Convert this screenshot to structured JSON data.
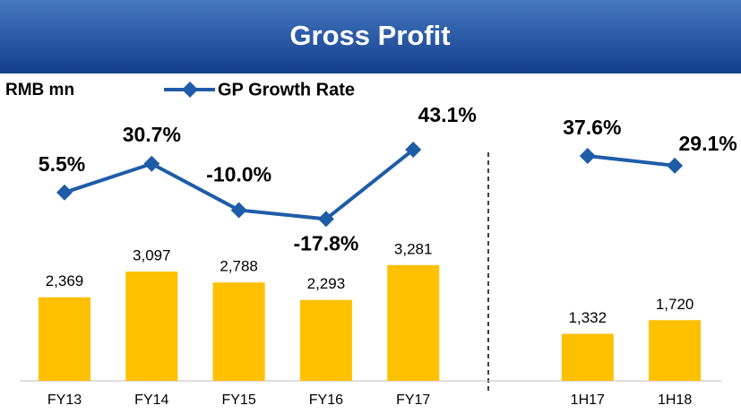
{
  "chart_data": {
    "type": "bar-line",
    "title": "Gross Profit",
    "ylabel": "RMB mn",
    "categories": [
      "FY13",
      "FY14",
      "FY15",
      "FY16",
      "FY17",
      null,
      "1H17",
      "1H18"
    ],
    "ylim": [
      0,
      8000
    ],
    "y2lim": [
      -160,
      88
    ],
    "series": [
      {
        "type": "bar",
        "color": "#ffc000",
        "values": [
          2369,
          3097,
          2788,
          2293,
          3281,
          null,
          1332,
          1720
        ],
        "value_labels": [
          "2,369",
          "3,097",
          "2,788",
          "2,293",
          "3,281",
          null,
          "1,332",
          "1,720"
        ]
      },
      {
        "type": "line",
        "name": "GP Growth Rate",
        "color": "#1f5ca8",
        "axis": "y2",
        "values": [
          5.5,
          30.7,
          -10.0,
          -17.8,
          43.1,
          null,
          37.6,
          29.1
        ],
        "value_labels": [
          "5.5%",
          "30.7%",
          "-10.0%",
          "-17.8%",
          "43.1%",
          null,
          "37.6%",
          "29.1%"
        ]
      }
    ]
  }
}
